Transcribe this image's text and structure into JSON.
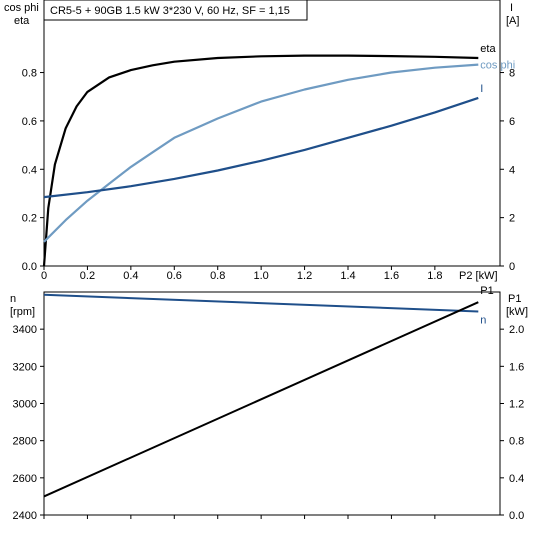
{
  "chart_data": [
    {
      "type": "line",
      "title": "CR5-5 + 90GB   1.5 kW   3*230 V, 60 Hz, SF = 1,15",
      "xlabel": "P2 [kW]",
      "ylabel_left": [
        "cos phi",
        "eta"
      ],
      "ylabel_right": [
        "I",
        "[A]"
      ],
      "xlim": [
        0,
        2.1
      ],
      "ylim_left": [
        0,
        1.1
      ],
      "ylim_right": [
        0,
        11
      ],
      "x_ticks": [
        "0",
        "0.2",
        "0.4",
        "0.6",
        "0.8",
        "1.0",
        "1.2",
        "1.4",
        "1.6",
        "1.8"
      ],
      "y_ticks_left": [
        "0.0",
        "0.2",
        "0.4",
        "0.6",
        "0.8"
      ],
      "y_ticks_right": [
        "0",
        "2",
        "4",
        "6",
        "8"
      ],
      "grid": false,
      "series": [
        {
          "name": "eta",
          "axis": "left",
          "color": "#000000",
          "x": [
            0,
            0.02,
            0.05,
            0.1,
            0.15,
            0.2,
            0.3,
            0.4,
            0.5,
            0.6,
            0.8,
            1.0,
            1.2,
            1.4,
            1.6,
            1.8,
            2.0
          ],
          "y": [
            0,
            0.24,
            0.42,
            0.57,
            0.66,
            0.72,
            0.78,
            0.81,
            0.83,
            0.845,
            0.86,
            0.867,
            0.87,
            0.87,
            0.868,
            0.865,
            0.86
          ]
        },
        {
          "name": "cos phi",
          "axis": "left",
          "color": "#6f9bc2",
          "x": [
            0,
            0.1,
            0.2,
            0.3,
            0.4,
            0.5,
            0.6,
            0.8,
            1.0,
            1.2,
            1.4,
            1.6,
            1.8,
            2.0
          ],
          "y": [
            0.1,
            0.19,
            0.27,
            0.34,
            0.41,
            0.47,
            0.53,
            0.61,
            0.68,
            0.73,
            0.77,
            0.8,
            0.82,
            0.833
          ]
        },
        {
          "name": "I",
          "axis": "right",
          "color": "#1f4f8a",
          "x": [
            0,
            0.2,
            0.4,
            0.6,
            0.8,
            1.0,
            1.2,
            1.4,
            1.6,
            1.8,
            2.0
          ],
          "y": [
            2.85,
            3.05,
            3.3,
            3.6,
            3.95,
            4.35,
            4.8,
            5.3,
            5.8,
            6.35,
            6.95
          ]
        }
      ]
    },
    {
      "type": "line",
      "xlabel": "",
      "ylabel_left": [
        "n",
        "[rpm]"
      ],
      "ylabel_right": [
        "P1",
        "[kW]"
      ],
      "xlim": [
        0,
        2.1
      ],
      "ylim_left": [
        2400,
        3600
      ],
      "ylim_right": [
        0,
        2.4
      ],
      "y_ticks_left": [
        "2400",
        "2600",
        "2800",
        "3000",
        "3200",
        "3400"
      ],
      "y_ticks_right": [
        "0.0",
        "0.4",
        "0.8",
        "1.2",
        "1.6",
        "2.0"
      ],
      "grid": false,
      "series": [
        {
          "name": "n",
          "axis": "left",
          "color": "#1f4f8a",
          "x": [
            0,
            2.0
          ],
          "y": [
            3585,
            3495
          ]
        },
        {
          "name": "P1",
          "axis": "right",
          "color": "#000000",
          "x": [
            0,
            2.0
          ],
          "y": [
            0.2,
            2.29
          ]
        }
      ]
    }
  ]
}
